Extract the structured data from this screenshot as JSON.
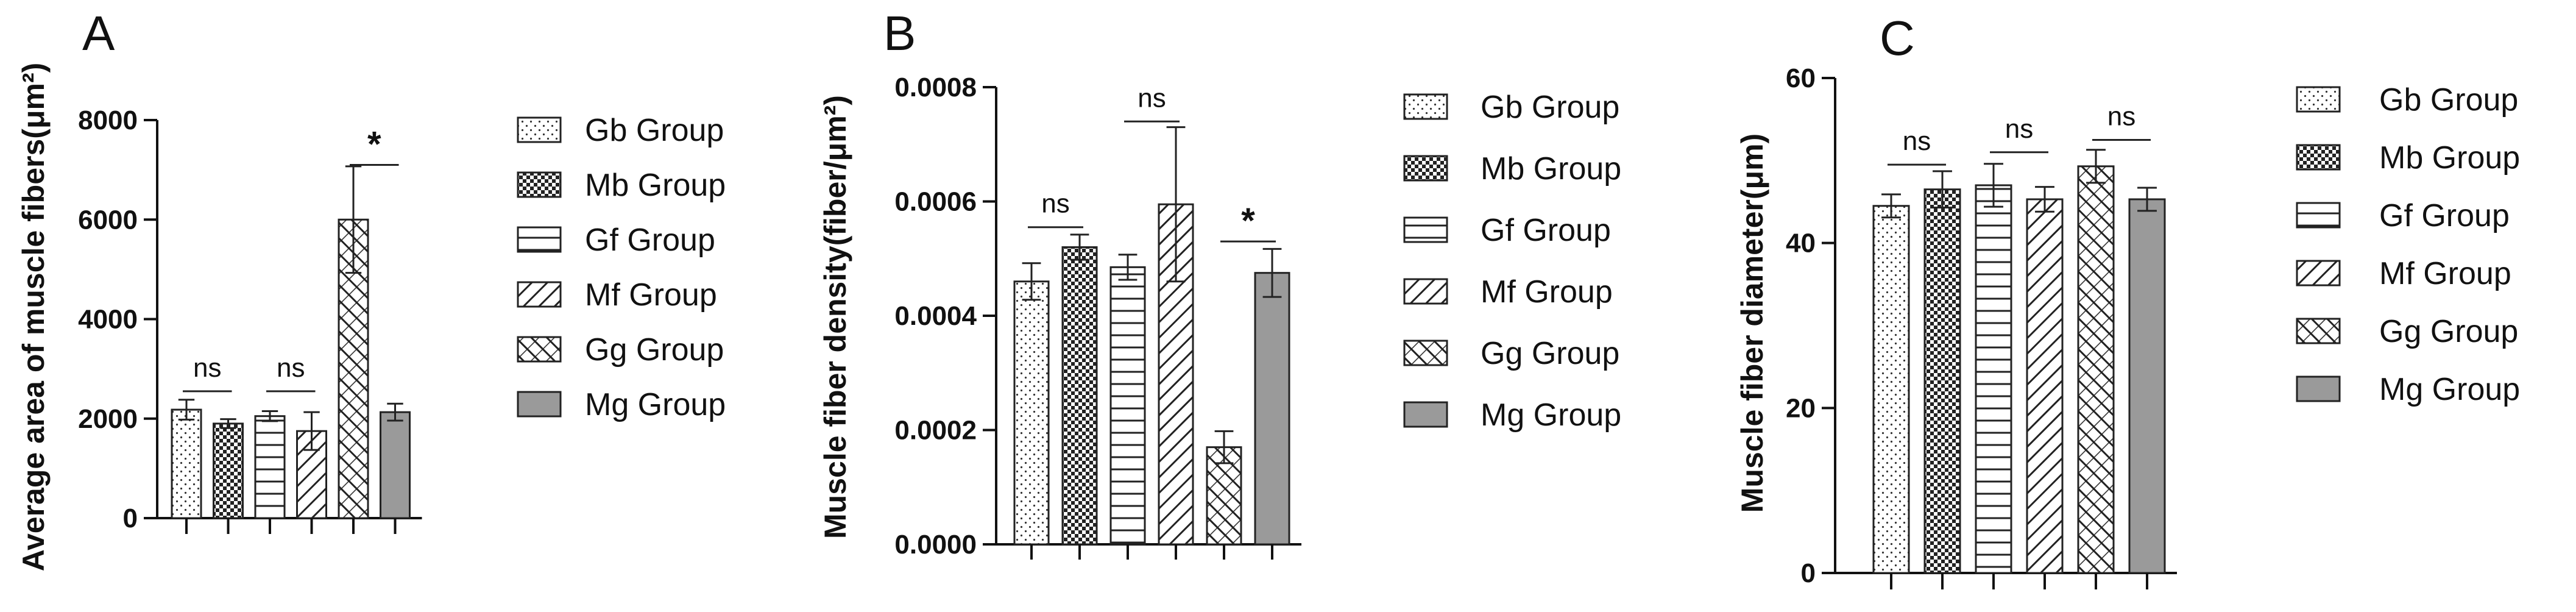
{
  "chart_data": [
    {
      "type": "bar",
      "panel": "A",
      "ylabel": "Average area of muscle fibers(μm²)",
      "ylim": [
        0,
        8000
      ],
      "yticks": [
        "0",
        "2000",
        "4000",
        "6000",
        "8000"
      ],
      "ytick_values": [
        0,
        2000,
        4000,
        6000,
        8000
      ],
      "categories": [
        "Gb Group",
        "Mb Group",
        "Gf Group",
        "Mf Group",
        "Gg Group",
        "Mg Group"
      ],
      "values": [
        2180,
        1900,
        2050,
        1750,
        6000,
        2130
      ],
      "errors": [
        200,
        90,
        100,
        380,
        1070,
        170
      ],
      "comparisons": [
        {
          "pair": [
            0,
            1
          ],
          "label": "ns",
          "y": 2550
        },
        {
          "pair": [
            2,
            3
          ],
          "label": "ns",
          "y": 2550
        },
        {
          "pair": [
            4,
            5
          ],
          "label": "*",
          "y": 7100
        }
      ]
    },
    {
      "type": "bar",
      "panel": "B",
      "ylabel": "Muscle fiber density(fiber/μm²)",
      "ylim": [
        0,
        0.0008
      ],
      "yticks": [
        "0.0000",
        "0.0002",
        "0.0004",
        "0.0006",
        "0.0008"
      ],
      "ytick_values": [
        0,
        0.0002,
        0.0004,
        0.0006,
        0.0008
      ],
      "categories": [
        "Gb Group",
        "Mb Group",
        "Gf Group",
        "Mf Group",
        "Gg Group",
        "Mg Group"
      ],
      "values": [
        0.00046,
        0.00052,
        0.000485,
        0.000595,
        0.00017,
        0.000475
      ],
      "errors": [
        3.2e-05,
        2.2e-05,
        2.2e-05,
        0.000135,
        2.8e-05,
        4.2e-05
      ],
      "comparisons": [
        {
          "pair": [
            0,
            1
          ],
          "label": "ns",
          "y": 0.000555
        },
        {
          "pair": [
            2,
            3
          ],
          "label": "ns",
          "y": 0.00074
        },
        {
          "pair": [
            4,
            5
          ],
          "label": "*",
          "y": 0.00053
        }
      ]
    },
    {
      "type": "bar",
      "panel": "C",
      "ylabel": "Muscle fiber diameter(μm)",
      "ylim": [
        0,
        60
      ],
      "yticks": [
        "0",
        "20",
        "40",
        "60"
      ],
      "ytick_values": [
        0,
        20,
        40,
        60
      ],
      "categories": [
        "Gb Group",
        "Mb Group",
        "Gf Group",
        "Mf Group",
        "Gg Group",
        "Mg Group"
      ],
      "values": [
        44.5,
        46.5,
        47.0,
        45.3,
        49.3,
        45.3
      ],
      "errors": [
        1.4,
        2.2,
        2.6,
        1.5,
        2.0,
        1.4
      ],
      "comparisons": [
        {
          "pair": [
            0,
            1
          ],
          "label": "ns",
          "y": 49.5
        },
        {
          "pair": [
            2,
            3
          ],
          "label": "ns",
          "y": 51.0
        },
        {
          "pair": [
            4,
            5
          ],
          "label": "ns",
          "y": 52.5
        }
      ]
    }
  ],
  "legend": {
    "entries": [
      "Gb Group",
      "Mb Group",
      "Gf Group",
      "Mf Group",
      "Gg Group",
      "Mg Group"
    ],
    "patterns": [
      "dots",
      "checker",
      "hlines",
      "diag-lines",
      "diag-cross",
      "solid-gray"
    ]
  },
  "colors": {
    "bar_stroke": "#222222",
    "solid_fill": "#9a9a9a",
    "axis": "#111111"
  }
}
